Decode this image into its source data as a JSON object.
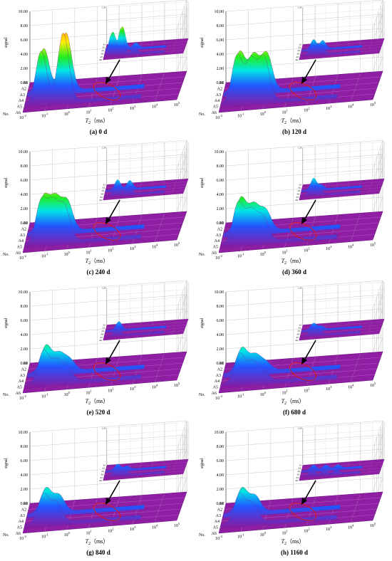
{
  "figure": {
    "ylabel": "signal",
    "yticks": [
      "10.00",
      "8.00",
      "6.00",
      "4.00",
      "2.00",
      "0.00"
    ],
    "inset_ytick": "1.20",
    "rows": [
      "A1",
      "A2",
      "A3",
      "A4",
      "A5",
      "A6"
    ],
    "row_axis": "No.",
    "xlabel": {
      "symbol": "T",
      "sub": "2",
      "unit": "（ms）"
    },
    "xticks": [
      {
        "base": "10",
        "exp": "-2"
      },
      {
        "base": "10",
        "exp": "-1"
      },
      {
        "base": "10",
        "exp": "0"
      },
      {
        "base": "10",
        "exp": "1"
      },
      {
        "base": "10",
        "exp": "2"
      },
      {
        "base": "10",
        "exp": "3"
      },
      {
        "base": "10",
        "exp": "4"
      },
      {
        "base": "10",
        "exp": "5"
      }
    ],
    "panels": [
      {
        "caption": "(a)  0 d"
      },
      {
        "caption": "(b)  120 d"
      },
      {
        "caption": "(c)  240 d"
      },
      {
        "caption": "(d)  360 d"
      },
      {
        "caption": "(e)  520 d"
      },
      {
        "caption": "(f)  680 d"
      },
      {
        "caption": "(g)  840 d"
      },
      {
        "caption": "(h)  1160 d"
      }
    ]
  }
}
